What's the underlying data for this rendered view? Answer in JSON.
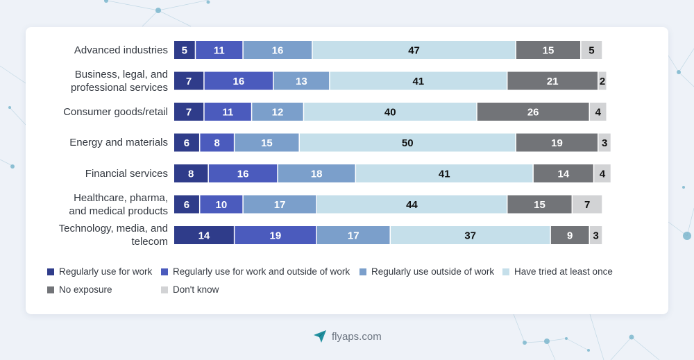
{
  "chart_data": {
    "type": "bar",
    "orientation": "horizontal",
    "stacked": true,
    "categories": [
      "Advanced industries",
      "Business, legal, and professional services",
      "Consumer goods/retail",
      "Energy and materials",
      "Financial services",
      "Healthcare, pharma, and medical products",
      "Technology, media, and telecom"
    ],
    "category_label_lines": [
      [
        "Advanced industries"
      ],
      [
        "Business, legal, and",
        "professional services"
      ],
      [
        "Consumer goods/retail"
      ],
      [
        "Energy and materials"
      ],
      [
        "Financial services"
      ],
      [
        "Healthcare, pharma,",
        "and medical products"
      ],
      [
        "Technology, media, and",
        "telecom"
      ]
    ],
    "series": [
      {
        "name": "Regularly use for work",
        "color": "#2f3c8a",
        "label_color": "#ffffff",
        "values": [
          5,
          7,
          7,
          6,
          8,
          6,
          14
        ]
      },
      {
        "name": "Regularly use for work and outside of work",
        "color": "#4b5bbd",
        "label_color": "#ffffff",
        "values": [
          11,
          16,
          11,
          8,
          16,
          10,
          19
        ]
      },
      {
        "name": "Regularly use outside of work",
        "color": "#7b9fcb",
        "label_color": "#ffffff",
        "values": [
          16,
          13,
          12,
          15,
          18,
          17,
          17
        ]
      },
      {
        "name": "Have tried at least once",
        "color": "#c5dfea",
        "label_color": "#111111",
        "values": [
          47,
          41,
          40,
          50,
          41,
          44,
          37
        ]
      },
      {
        "name": "No exposure",
        "color": "#727478",
        "label_color": "#ffffff",
        "values": [
          15,
          21,
          26,
          19,
          14,
          15,
          9
        ]
      },
      {
        "name": "Don't know",
        "color": "#d2d3d5",
        "label_color": "#111111",
        "values": [
          5,
          2,
          4,
          3,
          4,
          7,
          3
        ]
      }
    ],
    "xlim": [
      0,
      100
    ],
    "legend_position": "bottom",
    "grid": false
  },
  "footer": {
    "text": "flyaps.com"
  }
}
